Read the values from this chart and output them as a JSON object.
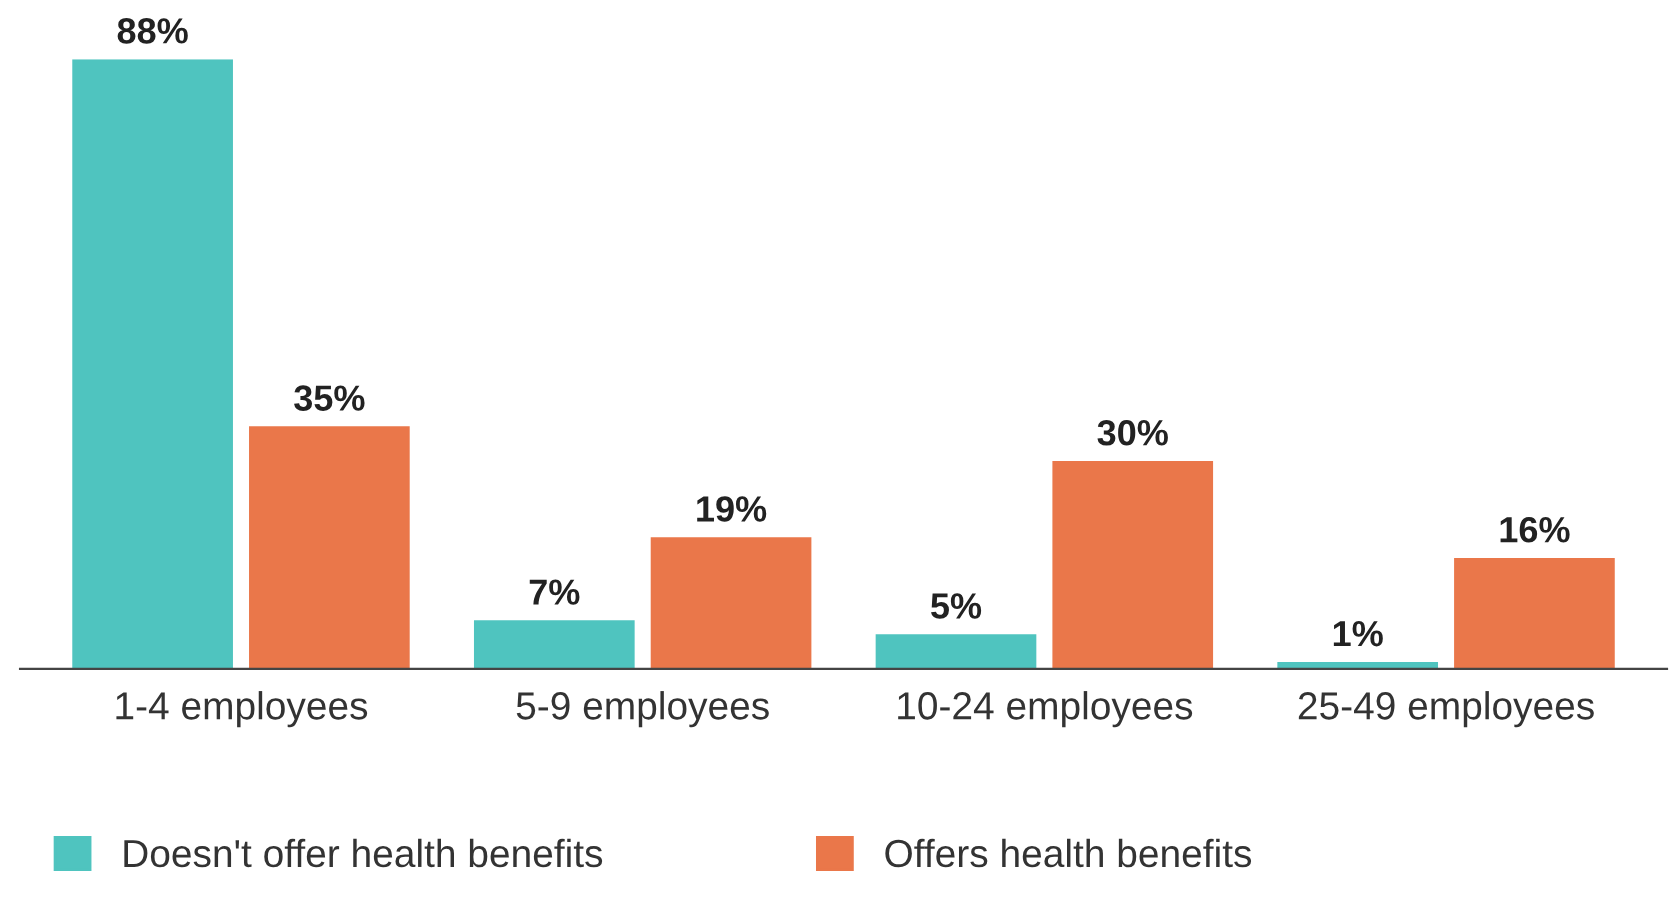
{
  "chart_data": {
    "type": "bar",
    "categories": [
      "1-4 employees",
      "5-9 employees",
      "10-24 employees",
      "25-49 employees"
    ],
    "series": [
      {
        "name": "Doesn't offer health benefits",
        "color": "#4fc4bf",
        "values": [
          88,
          7,
          5,
          1
        ],
        "value_labels": [
          "88%",
          "7%",
          "5%",
          "1%"
        ]
      },
      {
        "name": "Offers health benefits",
        "color": "#ea774a",
        "values": [
          35,
          19,
          30,
          16
        ],
        "value_labels": [
          "35%",
          "19%",
          "30%",
          "16%"
        ]
      }
    ],
    "relative": false,
    "legend": "bottom",
    "grid": false
  }
}
